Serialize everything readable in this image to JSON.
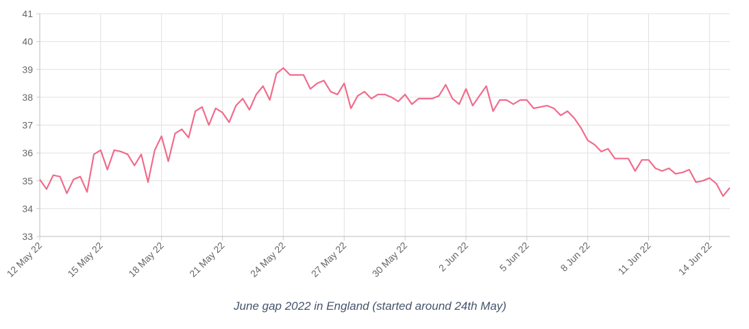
{
  "chart_data": {
    "type": "line",
    "caption": "June gap 2022 in England (started around 24th May)",
    "categories": [
      "12 May 22",
      null,
      null,
      null,
      null,
      null,
      null,
      null,
      null,
      "15 May 22",
      null,
      null,
      null,
      null,
      null,
      null,
      null,
      null,
      "18 May 22",
      null,
      null,
      null,
      null,
      null,
      null,
      null,
      null,
      "21 May 22",
      null,
      null,
      null,
      null,
      null,
      null,
      null,
      null,
      "24 May 22",
      null,
      null,
      null,
      null,
      null,
      null,
      null,
      null,
      "27 May 22",
      null,
      null,
      null,
      null,
      null,
      null,
      null,
      null,
      "30 May 22",
      null,
      null,
      null,
      null,
      null,
      null,
      null,
      null,
      "2 Jun 22",
      null,
      null,
      null,
      null,
      null,
      null,
      null,
      null,
      "5 Jun 22",
      null,
      null,
      null,
      null,
      null,
      null,
      null,
      null,
      "8 Jun 22",
      null,
      null,
      null,
      null,
      null,
      null,
      null,
      null,
      "11 Jun 22",
      null,
      null,
      null,
      null,
      null,
      null,
      null,
      null,
      "14 Jun 22",
      null,
      null,
      null
    ],
    "series": [
      {
        "color": "#f06b8b",
        "values": [
          35.05,
          34.7,
          35.2,
          35.15,
          34.55,
          35.05,
          35.15,
          34.6,
          35.95,
          36.1,
          35.4,
          36.1,
          36.05,
          35.95,
          35.55,
          35.95,
          34.95,
          36.1,
          36.6,
          35.7,
          36.7,
          36.85,
          36.55,
          37.5,
          37.65,
          37.0,
          37.6,
          37.45,
          37.1,
          37.7,
          37.95,
          37.55,
          38.1,
          38.4,
          37.9,
          38.85,
          39.05,
          38.8,
          38.8,
          38.8,
          38.3,
          38.5,
          38.6,
          38.2,
          38.1,
          38.5,
          37.6,
          38.05,
          38.2,
          37.95,
          38.1,
          38.1,
          38.0,
          37.85,
          38.1,
          37.75,
          37.95,
          37.95,
          37.95,
          38.05,
          38.45,
          37.95,
          37.75,
          38.3,
          37.7,
          38.05,
          38.4,
          37.5,
          37.9,
          37.9,
          37.75,
          37.9,
          37.9,
          37.6,
          37.65,
          37.7,
          37.6,
          37.35,
          37.5,
          37.25,
          36.9,
          36.45,
          36.3,
          36.05,
          36.15,
          35.8,
          35.8,
          35.8,
          35.35,
          35.75,
          35.75,
          35.45,
          35.35,
          35.45,
          35.25,
          35.3,
          35.4,
          34.95,
          35.0,
          35.1,
          34.9,
          34.45,
          34.75
        ]
      }
    ],
    "ylim": [
      33,
      41
    ],
    "yticks": [
      33,
      34,
      35,
      36,
      37,
      38,
      39,
      40,
      41
    ],
    "grid": true
  }
}
